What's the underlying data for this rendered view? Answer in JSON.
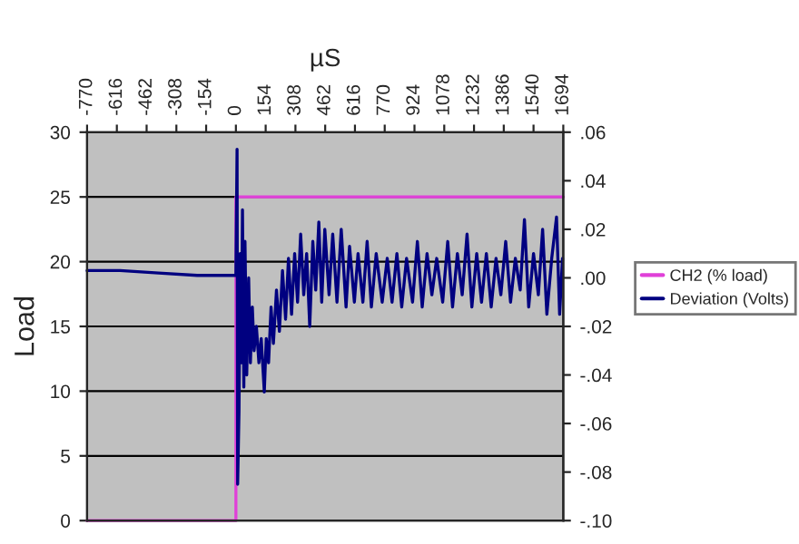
{
  "chart_data": {
    "type": "line",
    "xlabel": "µS",
    "ylabel": "Load",
    "xlim": [
      -770,
      1694
    ],
    "xticks": [
      -770,
      -616,
      -462,
      -308,
      -154,
      0,
      154,
      308,
      462,
      616,
      770,
      924,
      1078,
      1232,
      1386,
      1540,
      1694
    ],
    "ylim": [
      0,
      30
    ],
    "yticks": [
      0,
      5,
      10,
      15,
      20,
      25,
      30
    ],
    "y2lim": [
      -0.1,
      0.06
    ],
    "y2ticks": [
      {
        "value": -0.1,
        "label": "-.10"
      },
      {
        "value": -0.08,
        "label": "-.08"
      },
      {
        "value": -0.06,
        "label": "-.06"
      },
      {
        "value": -0.04,
        "label": "-.04"
      },
      {
        "value": -0.02,
        "label": "-.02"
      },
      {
        "value": 0,
        "label": ".00"
      },
      {
        "value": 0.02,
        "label": ".02"
      },
      {
        "value": 0.04,
        "label": ".04"
      },
      {
        "value": 0.06,
        "label": ".06"
      }
    ],
    "grid": "y",
    "legend": "right",
    "series": [
      {
        "name": "CH2 (% load)",
        "color": "#e040d8",
        "x": [
          -770,
          0,
          0,
          1694
        ],
        "values": [
          0,
          0,
          25,
          25
        ]
      },
      {
        "name": "Deviation (Volts)",
        "color": "#000080",
        "axis": "y2",
        "x": [
          -770,
          -600,
          -400,
          -200,
          -5,
          0,
          6,
          9,
          16,
          22,
          28,
          34,
          41,
          47,
          56,
          66,
          75,
          85,
          94,
          106,
          119,
          131,
          147,
          157,
          169,
          182,
          194,
          210,
          225,
          241,
          257,
          272,
          288,
          304,
          319,
          335,
          351,
          366,
          382,
          398,
          413,
          429,
          444,
          460,
          482,
          501,
          523,
          545,
          570,
          588,
          613,
          632,
          657,
          679,
          701,
          726,
          757,
          783,
          808,
          833,
          858,
          883,
          914,
          939,
          964,
          989,
          1014,
          1039,
          1070,
          1096,
          1121,
          1146,
          1171,
          1196,
          1221,
          1246,
          1271,
          1296,
          1321,
          1346,
          1371,
          1396,
          1421,
          1446,
          1471,
          1493,
          1515,
          1540,
          1565,
          1587,
          1609,
          1634,
          1659,
          1675,
          1690
        ],
        "values": [
          0.003,
          0.003,
          0.002,
          0.001,
          0.001,
          0.001,
          0.053,
          -0.085,
          -0.055,
          0.01,
          -0.035,
          0.028,
          -0.045,
          0.015,
          -0.04,
          0.0,
          -0.035,
          -0.012,
          -0.03,
          -0.02,
          -0.035,
          -0.025,
          -0.047,
          -0.025,
          -0.035,
          -0.012,
          -0.027,
          -0.005,
          -0.022,
          0.003,
          -0.017,
          0.008,
          -0.015,
          0.01,
          -0.01,
          0.018,
          -0.007,
          0.01,
          -0.02,
          0.015,
          -0.005,
          0.023,
          -0.01,
          0.02,
          -0.007,
          0.018,
          -0.01,
          0.02,
          -0.012,
          0.013,
          -0.01,
          0.01,
          -0.01,
          0.015,
          -0.012,
          0.01,
          -0.01,
          0.008,
          -0.01,
          0.01,
          -0.012,
          0.008,
          -0.01,
          0.015,
          -0.012,
          0.01,
          -0.007,
          0.008,
          -0.01,
          0.015,
          -0.012,
          0.01,
          -0.007,
          0.018,
          -0.012,
          0.01,
          -0.01,
          0.01,
          -0.012,
          0.008,
          -0.007,
          0.015,
          -0.01,
          0.008,
          -0.005,
          0.024,
          -0.012,
          0.01,
          -0.007,
          0.02,
          -0.015,
          0.008,
          0.025,
          -0.015,
          0.008
        ]
      }
    ]
  }
}
